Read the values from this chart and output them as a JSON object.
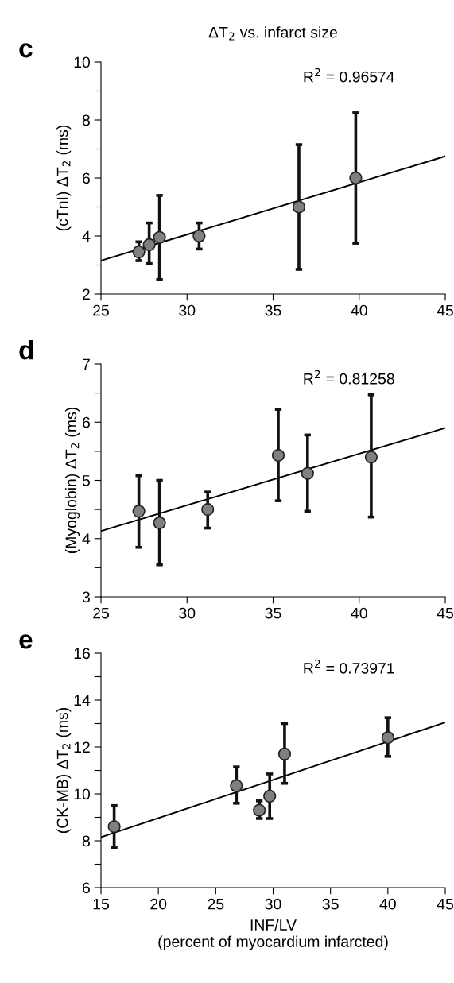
{
  "chart_data": [
    {
      "type": "scatter",
      "title": "ΔT$_{2}$ vs. infarct size",
      "ylabel": "(cTnI) ΔT$_{2}$ (ms)",
      "annotations": [
        "c",
        "R$^{2}$ = 0.96574"
      ],
      "xlim": [
        25,
        45
      ],
      "xticks": [
        25,
        30,
        35,
        40,
        45
      ],
      "ylim": [
        2,
        10
      ],
      "yticks": [
        2,
        {
          "value": 3,
          "label": null
        },
        4,
        {
          "value": 5,
          "label": null
        },
        6,
        {
          "value": 7,
          "label": null
        },
        8,
        {
          "value": 9,
          "label": null
        },
        10
      ],
      "grid": false,
      "series": [
        {
          "marker": "circle",
          "color": "#808080",
          "x": [
            27.2,
            27.8,
            28.4,
            30.7,
            36.5,
            39.8
          ],
          "values": [
            3.45,
            3.7,
            3.95,
            4.0,
            5.0,
            6.0
          ],
          "errors": [
            [
              3.15,
              3.8
            ],
            [
              3.05,
              4.45
            ],
            [
              2.5,
              5.4
            ],
            [
              3.55,
              4.45
            ],
            [
              2.85,
              7.15
            ],
            [
              3.75,
              8.25
            ]
          ]
        },
        {
          "type": "line",
          "color": "#000000",
          "x": [
            25,
            45
          ],
          "values": [
            3.15,
            6.75
          ]
        }
      ]
    },
    {
      "type": "scatter",
      "ylabel": "(Myoglobin) ΔT$_{2}$ (ms)",
      "annotations": [
        "d",
        "R$^{2}$ = 0.81258"
      ],
      "xlim": [
        25,
        45
      ],
      "xticks": [
        25,
        30,
        35,
        40,
        45
      ],
      "ylim": [
        3,
        7
      ],
      "yticks": [
        3,
        {
          "value": 3.5,
          "label": null
        },
        4,
        {
          "value": 4.5,
          "label": null
        },
        5,
        {
          "value": 5.5,
          "label": null
        },
        6,
        {
          "value": 6.5,
          "label": null
        },
        7
      ],
      "grid": false,
      "series": [
        {
          "marker": "circle",
          "color": "#808080",
          "x": [
            27.2,
            28.4,
            31.2,
            35.3,
            37.0,
            40.7
          ],
          "values": [
            4.47,
            4.27,
            4.5,
            5.43,
            5.12,
            5.4
          ],
          "errors": [
            [
              3.85,
              5.08
            ],
            [
              3.55,
              5.0
            ],
            [
              4.18,
              4.8
            ],
            [
              4.65,
              6.22
            ],
            [
              4.47,
              5.78
            ],
            [
              4.37,
              6.47
            ]
          ]
        },
        {
          "type": "line",
          "color": "#000000",
          "x": [
            25,
            45
          ],
          "values": [
            4.13,
            5.9
          ]
        }
      ]
    },
    {
      "type": "scatter",
      "xlabel": "INF/LV\n(percent of myocardium infarcted)",
      "ylabel": "(CK-MB) ΔT$_{2}$ (ms)",
      "annotations": [
        "e",
        "R$^{2}$ = 0.73971"
      ],
      "xlim": [
        15,
        45
      ],
      "xticks": [
        15,
        20,
        25,
        30,
        35,
        40,
        45
      ],
      "ylim": [
        6,
        16
      ],
      "yticks": [
        6,
        {
          "value": 7,
          "label": null
        },
        8,
        {
          "value": 9,
          "label": null
        },
        10,
        {
          "value": 11,
          "label": null
        },
        12,
        {
          "value": 13,
          "label": null
        },
        14,
        {
          "value": 15,
          "label": null
        },
        16
      ],
      "grid": false,
      "series": [
        {
          "marker": "circle",
          "color": "#808080",
          "x": [
            16.15,
            26.8,
            28.8,
            29.7,
            31.0,
            40.0
          ],
          "values": [
            8.6,
            10.35,
            9.3,
            9.9,
            11.7,
            12.4
          ],
          "errors": [
            [
              7.7,
              9.5
            ],
            [
              9.6,
              11.15
            ],
            [
              8.95,
              9.7
            ],
            [
              8.95,
              10.85
            ],
            [
              10.45,
              13.0
            ],
            [
              11.6,
              13.25
            ]
          ]
        },
        {
          "type": "line",
          "color": "#000000",
          "x": [
            15,
            45
          ],
          "values": [
            8.15,
            13.05
          ]
        }
      ]
    }
  ]
}
